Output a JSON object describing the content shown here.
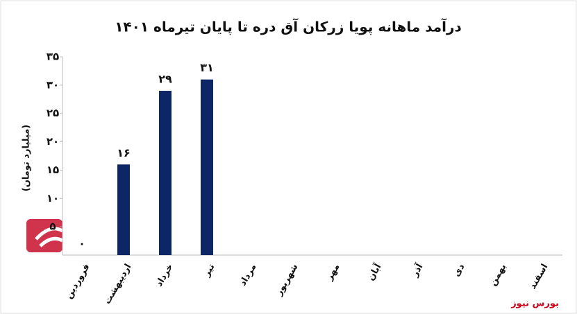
{
  "chart_data": {
    "type": "bar",
    "title": "درآمد ماهانه پویا زرکان آق دره تا پایان تیرماه ۱۴۰۱",
    "y_label": "(میلیارد تومان)",
    "source": "بورس نیوز",
    "categories": [
      "فروردین",
      "اردیبهشت",
      "خرداد",
      "تیر",
      "مرداد",
      "شهریور",
      "مهر",
      "آبان",
      "آذر",
      "دی",
      "بهمن",
      "اسفند"
    ],
    "values": [
      0,
      16,
      29,
      31,
      null,
      null,
      null,
      null,
      null,
      null,
      null,
      null
    ],
    "value_labels": [
      "۰",
      "۱۶",
      "۲۹",
      "۳۱",
      null,
      null,
      null,
      null,
      null,
      null,
      null,
      null
    ],
    "color": "#0d2666",
    "ylim": [
      0,
      35
    ],
    "yticks": [
      {
        "value": 5,
        "label": "۵"
      },
      {
        "value": 10,
        "label": "۱۰"
      },
      {
        "value": 15,
        "label": "۱۵"
      },
      {
        "value": 20,
        "label": "۲۰"
      },
      {
        "value": 25,
        "label": "۲۵"
      },
      {
        "value": 30,
        "label": "۳۰"
      },
      {
        "value": 35,
        "label": "۳۵"
      }
    ],
    "grid": false
  }
}
